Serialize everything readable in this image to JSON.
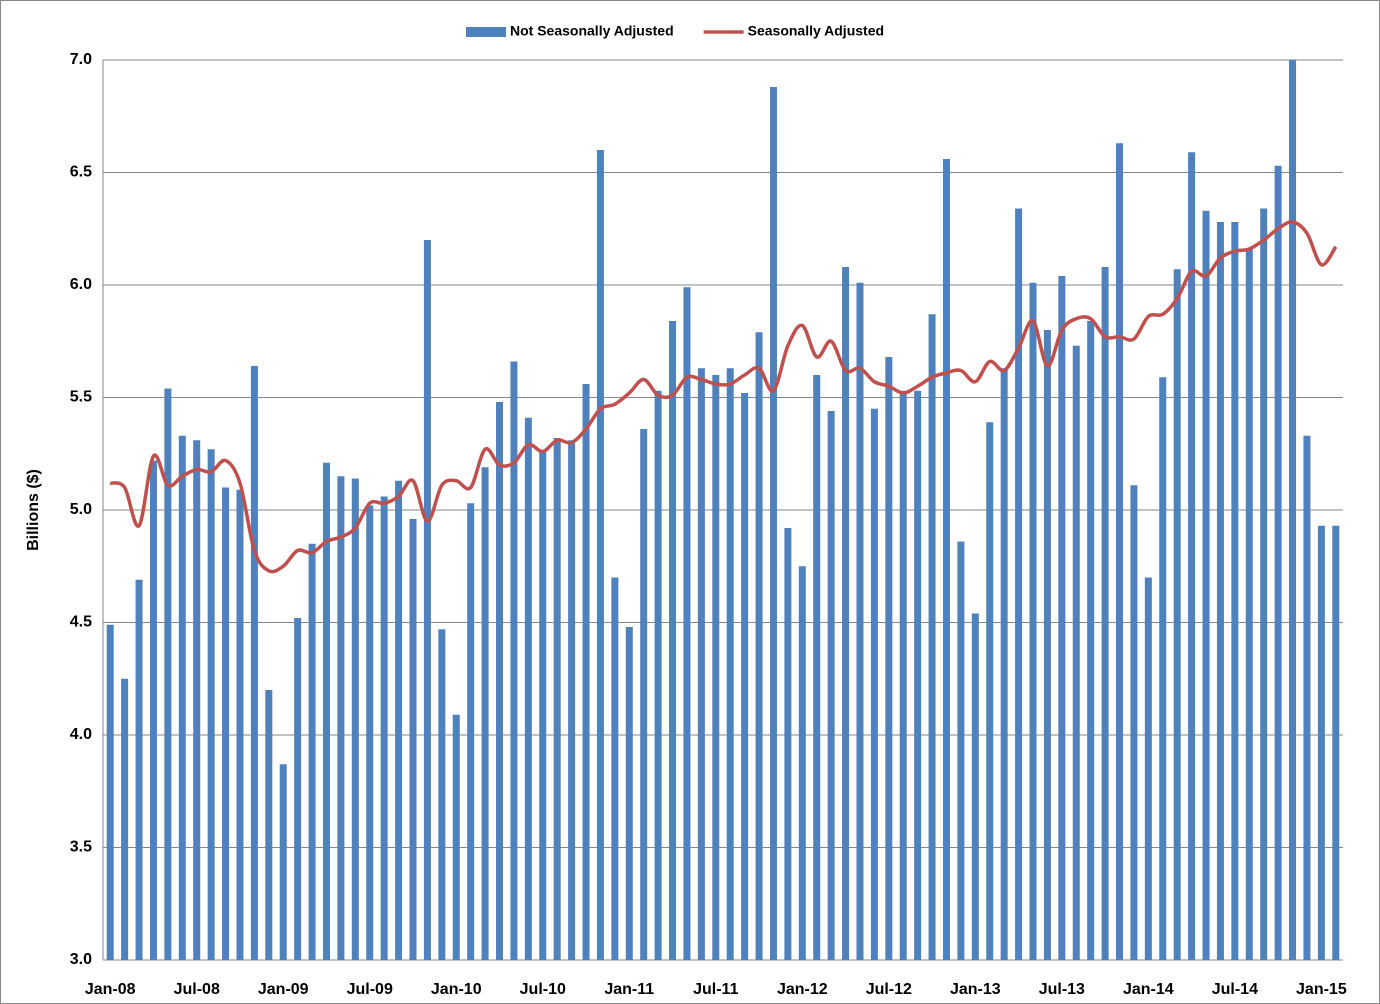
{
  "chart_data": {
    "type": "bar",
    "y_label": "Billions ($)",
    "categories": [
      "Jan-08",
      null,
      null,
      null,
      null,
      null,
      "Jul-08",
      null,
      null,
      null,
      null,
      null,
      "Jan-09",
      null,
      null,
      null,
      null,
      null,
      "Jul-09",
      null,
      null,
      null,
      null,
      null,
      "Jan-10",
      null,
      null,
      null,
      null,
      null,
      "Jul-10",
      null,
      null,
      null,
      null,
      null,
      "Jan-11",
      null,
      null,
      null,
      null,
      null,
      "Jul-11",
      null,
      null,
      null,
      null,
      null,
      "Jan-12",
      null,
      null,
      null,
      null,
      null,
      "Jul-12",
      null,
      null,
      null,
      null,
      null,
      "Jan-13",
      null,
      null,
      null,
      null,
      null,
      "Jul-13",
      null,
      null,
      null,
      null,
      null,
      "Jan-14",
      null,
      null,
      null,
      null,
      null,
      "Jul-14",
      null,
      null,
      null,
      null,
      null,
      "Jan-15",
      null
    ],
    "series": [
      {
        "name": "Not Seasonally Adjusted",
        "type": "bar",
        "color": "#4f81bd",
        "values": [
          4.49,
          4.25,
          4.69,
          5.22,
          5.54,
          5.33,
          5.31,
          5.27,
          5.1,
          5.09,
          5.64,
          4.2,
          3.87,
          4.52,
          4.85,
          5.21,
          5.15,
          5.14,
          5.02,
          5.06,
          5.13,
          4.96,
          6.2,
          4.47,
          4.09,
          5.03,
          5.19,
          5.48,
          5.66,
          5.41,
          5.26,
          5.32,
          5.31,
          5.56,
          6.6,
          4.7,
          4.48,
          5.36,
          5.53,
          5.84,
          5.99,
          5.63,
          5.6,
          5.63,
          5.52,
          5.79,
          6.88,
          4.92,
          4.75,
          5.6,
          5.44,
          6.08,
          6.01,
          5.45,
          5.68,
          5.53,
          5.53,
          5.87,
          6.56,
          4.86,
          4.54,
          5.39,
          5.63,
          6.34,
          6.01,
          5.8,
          6.04,
          5.73,
          5.84,
          6.08,
          6.63,
          5.11,
          4.7,
          5.59,
          6.07,
          6.59,
          6.33,
          6.28,
          6.28,
          6.16,
          6.34,
          6.53,
          7.0,
          5.33,
          4.93,
          4.93
        ]
      },
      {
        "name": "Seasonally Adjusted",
        "type": "line",
        "color": "#c0504d",
        "values": [
          5.12,
          5.1,
          4.93,
          5.24,
          5.11,
          5.15,
          5.18,
          5.17,
          5.22,
          5.12,
          4.82,
          4.73,
          4.75,
          4.82,
          4.81,
          4.86,
          4.88,
          4.92,
          5.03,
          5.03,
          5.06,
          5.13,
          4.95,
          5.11,
          5.13,
          5.1,
          5.27,
          5.2,
          5.21,
          5.29,
          5.26,
          5.31,
          5.3,
          5.36,
          5.45,
          5.47,
          5.52,
          5.58,
          5.51,
          5.51,
          5.59,
          5.58,
          5.56,
          5.56,
          5.6,
          5.63,
          5.53,
          5.73,
          5.82,
          5.68,
          5.75,
          5.62,
          5.63,
          5.57,
          5.55,
          5.52,
          5.55,
          5.59,
          5.61,
          5.62,
          5.57,
          5.66,
          5.62,
          5.72,
          5.84,
          5.64,
          5.8,
          5.85,
          5.85,
          5.77,
          5.77,
          5.76,
          5.86,
          5.87,
          5.94,
          6.06,
          6.04,
          6.12,
          6.15,
          6.16,
          6.2,
          6.25,
          6.28,
          6.23,
          6.09,
          6.17
        ]
      }
    ],
    "ylim": [
      3,
      7
    ],
    "yticks": [
      {
        "value": 3,
        "label": "3.0"
      },
      3.5,
      {
        "value": 4,
        "label": "4.0"
      },
      4.5,
      {
        "value": 5,
        "label": "5.0"
      },
      5.5,
      {
        "value": 6,
        "label": "6.0"
      },
      6.5,
      {
        "value": 7,
        "label": "7.0"
      }
    ],
    "grid": true,
    "legend": "top"
  }
}
